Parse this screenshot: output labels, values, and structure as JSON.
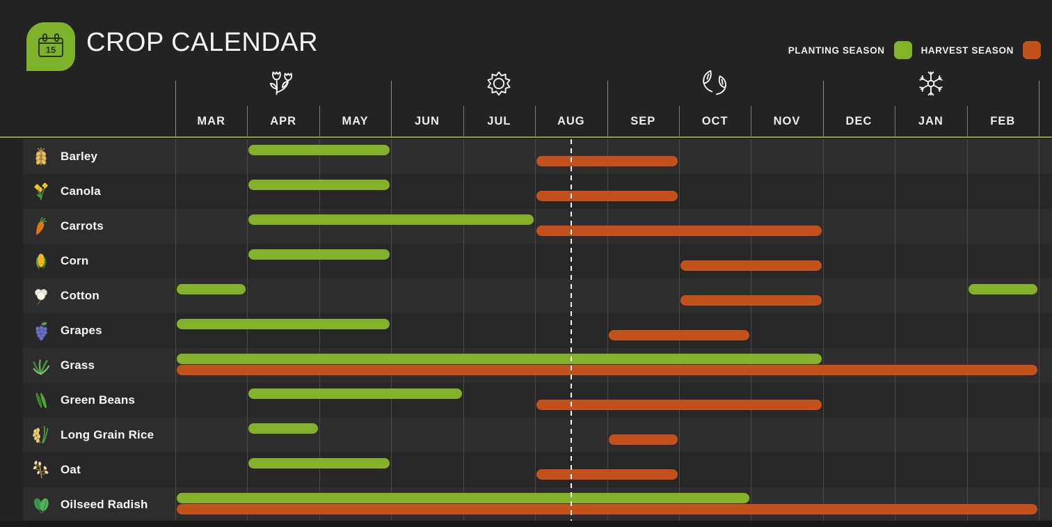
{
  "header": {
    "title": "CROP CALENDAR",
    "logo_day": "15",
    "logo_color": "#7eb22a"
  },
  "legend": {
    "planting_label": "PLANTING SEASON",
    "harvest_label": "HARVEST SEASON",
    "planting_color": "#83b22a",
    "harvest_color": "#c3511b"
  },
  "chart_data": {
    "type": "gantt",
    "title": "CROP CALENDAR",
    "unit": "month index from MAR, end exclusive",
    "months": [
      "MAR",
      "APR",
      "MAY",
      "JUN",
      "JUL",
      "AUG",
      "SEP",
      "OCT",
      "NOV",
      "DEC",
      "JAN",
      "FEB"
    ],
    "season_groups": [
      {
        "icon": "tulips-icon",
        "months": [
          "MAR",
          "APR",
          "MAY"
        ]
      },
      {
        "icon": "sun-icon",
        "months": [
          "JUN",
          "JUL",
          "AUG"
        ]
      },
      {
        "icon": "autumn-leaves-icon",
        "months": [
          "SEP",
          "OCT",
          "NOV"
        ]
      },
      {
        "icon": "snowflake-icon",
        "months": [
          "DEC",
          "JAN",
          "FEB"
        ]
      }
    ],
    "current_date_marker": {
      "style": "white-dashed-line",
      "month_index_from_mar": 5.5
    },
    "crops": [
      {
        "name": "Barley",
        "icon": "barley-icon",
        "planting_ranges": [
          [
            1,
            3
          ]
        ],
        "harvest_ranges": [
          [
            5,
            7
          ]
        ]
      },
      {
        "name": "Canola",
        "icon": "canola-icon",
        "planting_ranges": [
          [
            1,
            3
          ]
        ],
        "harvest_ranges": [
          [
            5,
            7
          ]
        ]
      },
      {
        "name": "Carrots",
        "icon": "carrots-icon",
        "planting_ranges": [
          [
            1,
            5
          ]
        ],
        "harvest_ranges": [
          [
            5,
            9
          ]
        ]
      },
      {
        "name": "Corn",
        "icon": "corn-icon",
        "planting_ranges": [
          [
            1,
            3
          ]
        ],
        "harvest_ranges": [
          [
            7,
            9
          ]
        ]
      },
      {
        "name": "Cotton",
        "icon": "cotton-icon",
        "planting_ranges": [
          [
            0,
            1
          ],
          [
            11,
            12
          ]
        ],
        "harvest_ranges": [
          [
            7,
            9
          ]
        ]
      },
      {
        "name": "Grapes",
        "icon": "grapes-icon",
        "planting_ranges": [
          [
            0,
            3
          ]
        ],
        "harvest_ranges": [
          [
            6,
            8
          ]
        ]
      },
      {
        "name": "Grass",
        "icon": "grass-icon",
        "planting_ranges": [
          [
            0,
            9
          ]
        ],
        "harvest_ranges": [
          [
            0,
            12
          ]
        ]
      },
      {
        "name": "Green Beans",
        "icon": "green-beans-icon",
        "planting_ranges": [
          [
            1,
            4
          ]
        ],
        "harvest_ranges": [
          [
            5,
            9
          ]
        ]
      },
      {
        "name": "Long Grain Rice",
        "icon": "rice-icon",
        "planting_ranges": [
          [
            1,
            2
          ]
        ],
        "harvest_ranges": [
          [
            6,
            7
          ]
        ]
      },
      {
        "name": "Oat",
        "icon": "oat-icon",
        "planting_ranges": [
          [
            1,
            3
          ]
        ],
        "harvest_ranges": [
          [
            5,
            7
          ]
        ]
      },
      {
        "name": "Oilseed Radish",
        "icon": "oilseed-radish-icon",
        "planting_ranges": [
          [
            0,
            8
          ]
        ],
        "harvest_ranges": [
          [
            0,
            12
          ]
        ]
      }
    ]
  }
}
